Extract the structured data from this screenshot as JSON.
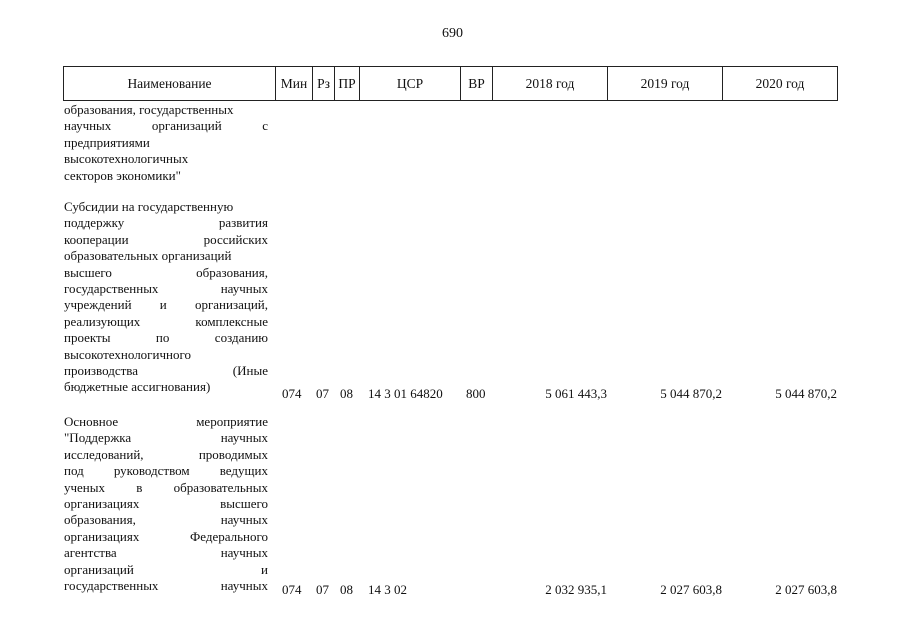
{
  "page_number": "690",
  "header": {
    "name": "Наименование",
    "min": "Мин",
    "rz": "Рз",
    "pr": "ПР",
    "csr": "ЦСР",
    "vr": "ВР",
    "y2018": "2018 год",
    "y2019": "2019 год",
    "y2020": "2020 год"
  },
  "rows": [
    {
      "lines": [
        "образования, государственных",
        "научных организаций с",
        "предприятиями",
        "высокотехнологичных",
        "секторов экономики\""
      ]
    },
    {
      "lines": [
        "Субсидии на государственную",
        "поддержку развития",
        "кооперации российских",
        "образовательных организаций",
        "высшего образования,",
        "государственных научных",
        "учреждений и организаций,",
        "реализующих комплексные",
        "проекты по созданию",
        "высокотехнологичного",
        "производства (Иные",
        "бюджетные ассигнования)"
      ],
      "min": "074",
      "rz": "07",
      "pr": "08",
      "csr": "14 3 01 64820",
      "vr": "800",
      "y2018": "5 061 443,3",
      "y2019": "5 044 870,2",
      "y2020": "5 044 870,2"
    },
    {
      "lines": [
        "Основное мероприятие",
        "\"Поддержка научных",
        "исследований, проводимых",
        "под руководством ведущих",
        "ученых в образовательных",
        "организациях высшего",
        "образования, научных",
        "организациях Федерального",
        "агентства научных",
        "организаций и",
        "государственных научных"
      ],
      "min": "074",
      "rz": "07",
      "pr": "08",
      "csr": "14 3 02",
      "vr": "",
      "y2018": "2 032 935,1",
      "y2019": "2 027 603,8",
      "y2020": "2 027 603,8"
    }
  ]
}
